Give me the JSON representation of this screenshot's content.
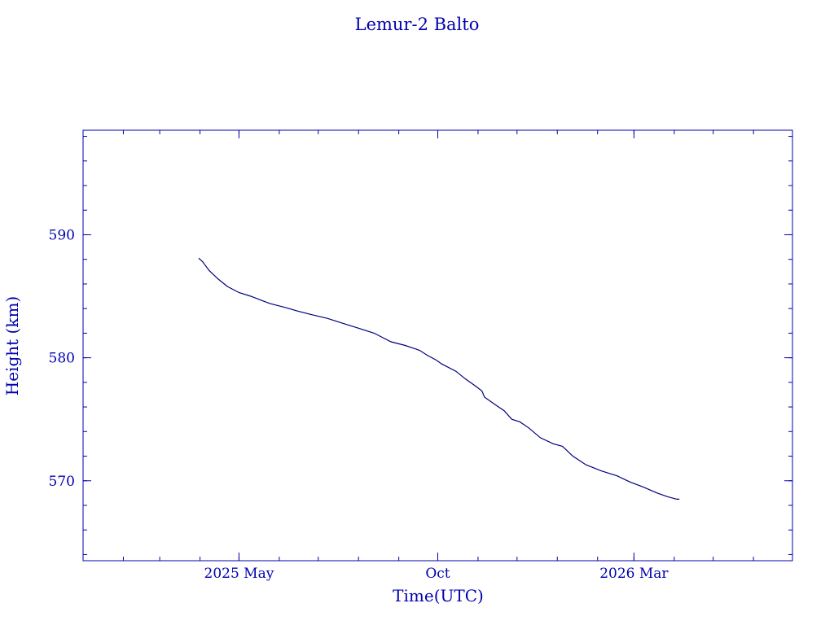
{
  "chart_data": {
    "type": "line",
    "title": "Lemur-2 Balto",
    "xlabel": "Time(UTC)",
    "ylabel": "Height (km)",
    "color": "#000080",
    "text_color": "#0000b0",
    "frame_color": "#0000b0",
    "grid": false,
    "x_axis_type": "date",
    "xlim": [
      "2025-01-01",
      "2026-07-01"
    ],
    "ylim": [
      563.5,
      598.5
    ],
    "x_ticks": [
      {
        "date": "2025-05-01",
        "label": "2025 May"
      },
      {
        "date": "2025-10-01",
        "label": "Oct"
      },
      {
        "date": "2026-03-01",
        "label": "2026 Mar"
      }
    ],
    "y_ticks": [
      {
        "value": 570,
        "label": "570"
      },
      {
        "value": 580,
        "label": "580"
      },
      {
        "value": 590,
        "label": "590"
      }
    ],
    "series": [
      {
        "x": [
          "2025-03-31",
          "2025-04-03",
          "2025-04-08",
          "2025-04-15",
          "2025-04-22",
          "2025-05-01",
          "2025-05-10",
          "2025-05-20",
          "2025-05-25",
          "2025-06-05",
          "2025-06-15",
          "2025-06-26",
          "2025-07-08",
          "2025-07-20",
          "2025-08-01",
          "2025-08-13",
          "2025-08-26",
          "2025-09-06",
          "2025-09-17",
          "2025-09-23",
          "2025-09-30",
          "2025-10-04",
          "2025-10-15",
          "2025-10-22",
          "2025-10-30",
          "2025-11-04",
          "2025-11-06",
          "2025-11-14",
          "2025-11-21",
          "2025-11-27",
          "2025-12-03",
          "2025-12-10",
          "2025-12-19",
          "2025-12-29",
          "2026-01-05",
          "2026-01-13",
          "2026-01-23",
          "2026-02-04",
          "2026-02-16",
          "2026-02-26",
          "2026-03-08",
          "2026-03-19",
          "2026-03-27",
          "2026-04-03",
          "2026-04-05"
        ],
        "y": [
          588.1,
          587.8,
          587.1,
          586.4,
          585.8,
          585.3,
          585.0,
          584.6,
          584.4,
          584.1,
          583.8,
          583.5,
          583.2,
          582.8,
          582.4,
          582.0,
          581.3,
          581.0,
          580.6,
          580.2,
          579.8,
          579.5,
          578.9,
          578.3,
          577.7,
          577.3,
          576.8,
          576.2,
          575.7,
          575.0,
          574.8,
          574.3,
          573.5,
          573.0,
          572.8,
          572.0,
          571.3,
          570.8,
          570.4,
          569.9,
          569.5,
          569.0,
          568.7,
          568.5,
          568.5
        ]
      }
    ]
  }
}
